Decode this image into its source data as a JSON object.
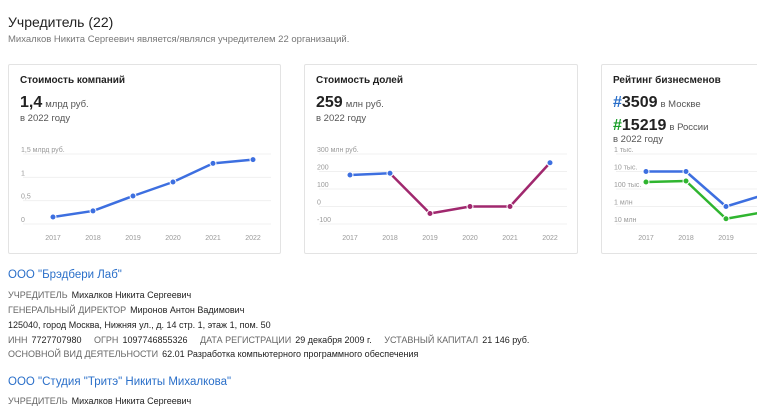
{
  "header": {
    "title": "Учредитель (22)",
    "subtitle": "Михалков Никита Сергеевич является/являлся учредителем 22 организаций."
  },
  "cards": {
    "companies": {
      "title": "Стоимость компаний",
      "value": "1,4",
      "unit": "млрд руб.",
      "year_note": "в 2022 году"
    },
    "shares": {
      "title": "Стоимость долей",
      "value": "259",
      "unit": "млн руб.",
      "year_note": "в 2022 году"
    },
    "rating": {
      "title": "Рейтинг бизнесменов",
      "moscow_value": "3509",
      "moscow_label": "в Москве",
      "russia_value": "15219",
      "russia_label": "в России",
      "year_note": "в 2022 году",
      "hash": "#"
    }
  },
  "chart_data": [
    {
      "type": "line",
      "x": [
        "2017",
        "2018",
        "2019",
        "2020",
        "2021",
        "2022"
      ],
      "series": [
        {
          "values": [
            0.15,
            0.28,
            0.6,
            0.9,
            1.3,
            1.38
          ],
          "color": "#3d6fe0"
        }
      ],
      "ylabels": [
        "1,5 млрд руб.",
        "1",
        "0,5",
        "0"
      ],
      "ylim": [
        0,
        1.5
      ]
    },
    {
      "type": "line",
      "x": [
        "2017",
        "2018",
        "2019",
        "2020",
        "2021",
        "2022"
      ],
      "series": [
        {
          "values": [
            180,
            190,
            -40,
            0,
            0,
            250
          ],
          "color": "#3d6fe0",
          "negative_color": "#a0286e"
        }
      ],
      "ylabels": [
        "300 млн руб.",
        "200",
        "100",
        "0",
        "-100"
      ],
      "ylim": [
        -100,
        300
      ]
    },
    {
      "type": "line",
      "x": [
        "2017",
        "2018",
        "2019",
        "2020"
      ],
      "series": [
        {
          "values": [
            10000,
            10000,
            1000000,
            200000
          ],
          "color": "#3d6fe0"
        },
        {
          "values": [
            40000,
            35000,
            5000000,
            2000000
          ],
          "color": "#2fb52f"
        }
      ],
      "ylabels": [
        "1 тыс.",
        "10 тыс.",
        "100 тыс.",
        "1 млн",
        "10 млн"
      ],
      "yscale": "log-reversed"
    }
  ],
  "orgs": [
    {
      "name": "ООО \"Брэдбери Лаб\"",
      "founder_label": "УЧРЕДИТЕЛЬ",
      "founder": "Михалков Никита Сергеевич",
      "director_label": "ГЕНЕРАЛЬНЫЙ ДИРЕКТОР",
      "director": "Миронов Антон Вадимович",
      "address": "125040, город Москва, Нижняя ул., д. 14 стр. 1, этаж 1, пом. 50",
      "inn_label": "ИНН",
      "inn": "7727707980",
      "ogrn_label": "ОГРН",
      "ogrn": "1097746855326",
      "reg_label": "ДАТА РЕГИСТРАЦИИ",
      "reg": "29 декабря 2009 г.",
      "capital_label": "УСТАВНЫЙ КАПИТАЛ",
      "capital": "21 146 руб.",
      "activity_label": "ОСНОВНОЙ ВИД ДЕЯТЕЛЬНОСТИ",
      "activity": "62.01 Разработка компьютерного программного обеспечения"
    },
    {
      "name": "ООО \"Студия \"Тритэ\" Никиты Михалкова\"",
      "founder_label": "УЧРЕДИТЕЛЬ",
      "founder": "Михалков Никита Сергеевич"
    }
  ]
}
